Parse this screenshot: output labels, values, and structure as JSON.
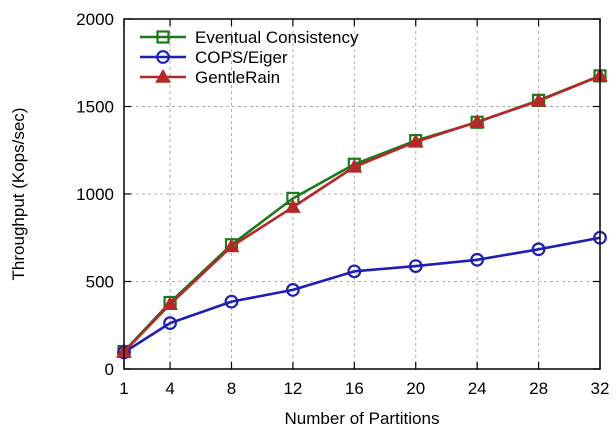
{
  "chart_data": {
    "type": "line",
    "xlabel": "Number of Partitions",
    "ylabel": "Throughput (Kops/sec)",
    "x": [
      1,
      4,
      8,
      12,
      16,
      20,
      24,
      28,
      32
    ],
    "xlim": [
      1,
      32
    ],
    "ylim": [
      0,
      2000
    ],
    "xticks": [
      1,
      4,
      8,
      12,
      16,
      20,
      24,
      28,
      32
    ],
    "yticks": [
      0,
      500,
      1000,
      1500,
      2000
    ],
    "grid": true,
    "legend_position": "top-left",
    "series": [
      {
        "name": "Eventual Consistency",
        "marker": "square",
        "color": "#1a7a1a",
        "values": [
          100,
          380,
          710,
          975,
          1170,
          1305,
          1410,
          1535,
          1675
        ]
      },
      {
        "name": "COPS/Eiger",
        "marker": "circle",
        "color": "#1f1fb4",
        "values": [
          95,
          262,
          385,
          452,
          558,
          588,
          624,
          684,
          750
        ]
      },
      {
        "name": "GentleRain",
        "marker": "triangle",
        "color": "#b42828",
        "values": [
          98,
          370,
          700,
          925,
          1155,
          1298,
          1412,
          1532,
          1675
        ]
      }
    ]
  }
}
